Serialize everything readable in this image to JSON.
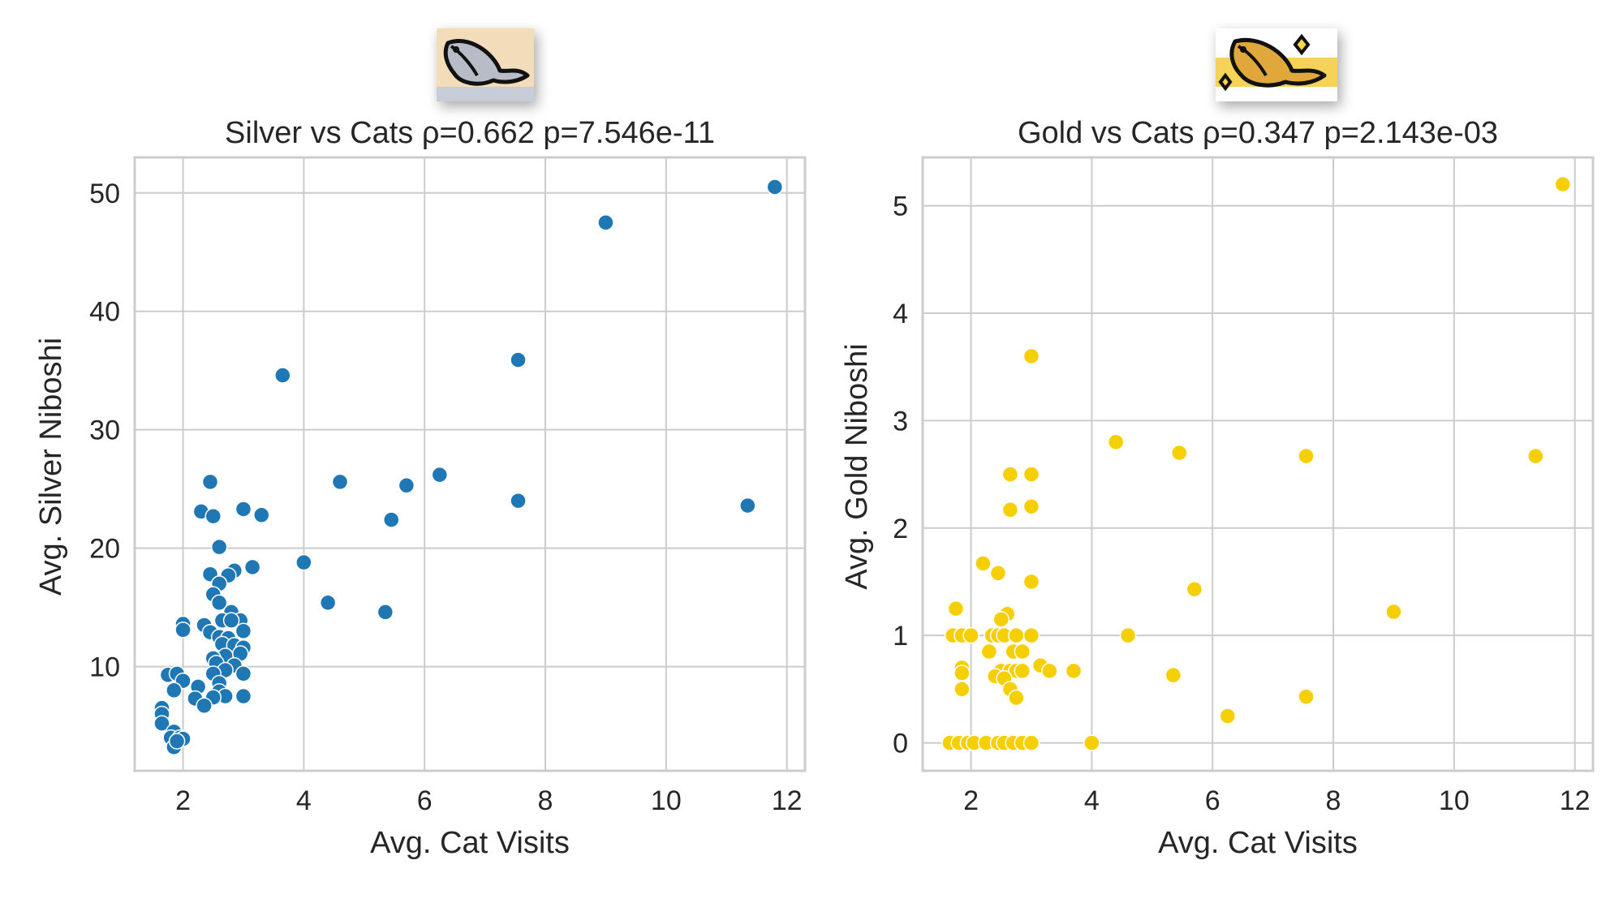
{
  "chart_data": [
    {
      "type": "scatter",
      "icon": "silver-fish-icon",
      "title": "Silver vs Cats  ρ=0.662  p=7.546e-11",
      "xlabel": "Avg. Cat Visits",
      "ylabel": "Avg. Silver Niboshi",
      "xlim": [
        1.2,
        12.3
      ],
      "ylim": [
        1.2,
        53.0
      ],
      "xticks": [
        2,
        4,
        6,
        8,
        10,
        12
      ],
      "yticks": [
        10,
        20,
        30,
        40,
        50
      ],
      "grid": true,
      "color": "#1f77b4",
      "points": [
        [
          11.8,
          50.5
        ],
        [
          9.0,
          47.5
        ],
        [
          7.55,
          35.9
        ],
        [
          3.65,
          34.6
        ],
        [
          7.55,
          24.0
        ],
        [
          11.35,
          23.6
        ],
        [
          6.25,
          26.2
        ],
        [
          5.7,
          25.3
        ],
        [
          4.6,
          25.6
        ],
        [
          5.45,
          22.4
        ],
        [
          4.4,
          15.4
        ],
        [
          5.35,
          14.6
        ],
        [
          4.0,
          18.8
        ],
        [
          3.3,
          22.8
        ],
        [
          3.0,
          23.3
        ],
        [
          3.15,
          18.4
        ],
        [
          2.45,
          25.6
        ],
        [
          2.3,
          23.1
        ],
        [
          2.5,
          22.7
        ],
        [
          2.6,
          20.1
        ],
        [
          2.45,
          17.8
        ],
        [
          2.85,
          18.1
        ],
        [
          2.75,
          17.7
        ],
        [
          2.6,
          17.0
        ],
        [
          2.5,
          16.1
        ],
        [
          2.6,
          15.4
        ],
        [
          2.8,
          14.6
        ],
        [
          2.95,
          13.9
        ],
        [
          2.65,
          13.9
        ],
        [
          2.8,
          13.9
        ],
        [
          2.35,
          13.5
        ],
        [
          2.0,
          13.6
        ],
        [
          2.0,
          13.1
        ],
        [
          3.0,
          13.0
        ],
        [
          2.45,
          12.9
        ],
        [
          2.6,
          12.5
        ],
        [
          2.75,
          12.4
        ],
        [
          2.65,
          11.9
        ],
        [
          2.85,
          11.8
        ],
        [
          3.0,
          11.6
        ],
        [
          2.95,
          11.1
        ],
        [
          2.7,
          10.9
        ],
        [
          2.5,
          10.7
        ],
        [
          2.55,
          10.3
        ],
        [
          2.85,
          10.1
        ],
        [
          2.7,
          9.7
        ],
        [
          2.5,
          9.4
        ],
        [
          3.0,
          9.4
        ],
        [
          1.75,
          9.3
        ],
        [
          1.9,
          9.4
        ],
        [
          2.0,
          8.8
        ],
        [
          2.6,
          8.6
        ],
        [
          2.25,
          8.3
        ],
        [
          1.85,
          8.0
        ],
        [
          2.6,
          7.9
        ],
        [
          2.7,
          7.5
        ],
        [
          2.2,
          7.3
        ],
        [
          2.5,
          7.4
        ],
        [
          3.0,
          7.5
        ],
        [
          2.35,
          6.7
        ],
        [
          1.65,
          6.5
        ],
        [
          1.65,
          6.0
        ],
        [
          1.65,
          5.2
        ],
        [
          1.85,
          4.5
        ],
        [
          1.8,
          4.0
        ],
        [
          1.95,
          4.0
        ],
        [
          2.0,
          3.9
        ],
        [
          1.85,
          3.2
        ],
        [
          1.9,
          3.7
        ]
      ]
    },
    {
      "type": "scatter",
      "icon": "gold-fish-icon",
      "title": "Gold vs Cats  ρ=0.347  p=2.143e-03",
      "xlabel": "Avg. Cat Visits",
      "ylabel": "Avg. Gold Niboshi",
      "xlim": [
        1.2,
        12.3
      ],
      "ylim": [
        -0.26,
        5.45
      ],
      "xticks": [
        2,
        4,
        6,
        8,
        10,
        12
      ],
      "yticks": [
        0,
        1,
        2,
        3,
        4,
        5
      ],
      "grid": true,
      "color": "#f5cf00",
      "points": [
        [
          11.8,
          5.2
        ],
        [
          3.0,
          3.6
        ],
        [
          4.4,
          2.8
        ],
        [
          5.45,
          2.7
        ],
        [
          7.55,
          2.67
        ],
        [
          11.35,
          2.67
        ],
        [
          2.65,
          2.5
        ],
        [
          3.0,
          2.5
        ],
        [
          2.65,
          2.17
        ],
        [
          3.0,
          2.2
        ],
        [
          2.2,
          1.67
        ],
        [
          2.45,
          1.58
        ],
        [
          3.0,
          1.5
        ],
        [
          5.7,
          1.43
        ],
        [
          9.0,
          1.22
        ],
        [
          1.75,
          1.25
        ],
        [
          2.6,
          1.2
        ],
        [
          2.5,
          1.15
        ],
        [
          1.7,
          1.0
        ],
        [
          1.85,
          1.0
        ],
        [
          2.0,
          1.0
        ],
        [
          2.35,
          1.0
        ],
        [
          2.45,
          1.0
        ],
        [
          2.55,
          1.0
        ],
        [
          2.75,
          1.0
        ],
        [
          3.0,
          1.0
        ],
        [
          4.6,
          1.0
        ],
        [
          2.3,
          0.85
        ],
        [
          2.7,
          0.85
        ],
        [
          2.85,
          0.85
        ],
        [
          1.85,
          0.7
        ],
        [
          3.15,
          0.72
        ],
        [
          1.85,
          0.65
        ],
        [
          2.5,
          0.67
        ],
        [
          2.65,
          0.67
        ],
        [
          2.75,
          0.67
        ],
        [
          2.85,
          0.67
        ],
        [
          3.3,
          0.67
        ],
        [
          3.7,
          0.67
        ],
        [
          2.4,
          0.62
        ],
        [
          5.35,
          0.63
        ],
        [
          2.55,
          0.6
        ],
        [
          1.85,
          0.5
        ],
        [
          2.65,
          0.5
        ],
        [
          2.75,
          0.42
        ],
        [
          7.55,
          0.43
        ],
        [
          6.25,
          0.25
        ],
        [
          1.65,
          0.0
        ],
        [
          1.8,
          0.0
        ],
        [
          1.95,
          0.0
        ],
        [
          2.05,
          0.0
        ],
        [
          2.25,
          0.0
        ],
        [
          2.45,
          0.0
        ],
        [
          2.55,
          0.0
        ],
        [
          2.7,
          0.0
        ],
        [
          2.85,
          0.0
        ],
        [
          3.0,
          0.0
        ],
        [
          4.0,
          0.0
        ]
      ]
    }
  ]
}
